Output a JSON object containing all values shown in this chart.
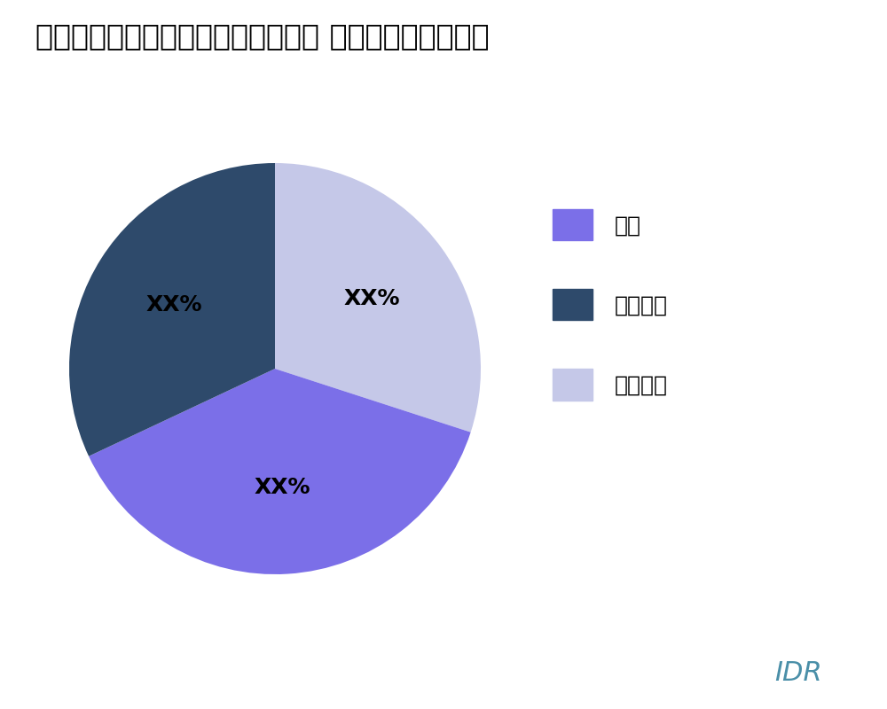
{
  "title": "オンラインテイクアウトと食品配達 タイプ別の市場分析",
  "title_fontsize": 24,
  "slices": [
    {
      "label": "取り除く",
      "value": 30,
      "color": "#C5C8E8",
      "text_label": "XX%"
    },
    {
      "label": "配達",
      "value": 38,
      "color": "#7B6FE8",
      "text_label": "XX%"
    },
    {
      "label": "取り除く",
      "value": 32,
      "color": "#2E4A6B",
      "text_label": "XX%"
    }
  ],
  "legend_order": [
    {
      "label": "配達",
      "color": "#7B6FE8"
    },
    {
      "label": "取り除く",
      "color": "#2E4A6B"
    },
    {
      "label": "取り除く",
      "color": "#C5C8E8"
    }
  ],
  "legend_fontsize": 18,
  "label_fontsize": 18,
  "watermark": "IDR",
  "watermark_color": "#4A8FA8",
  "watermark_fontsize": 22,
  "background_color": "#FFFFFF",
  "start_angle": 90
}
